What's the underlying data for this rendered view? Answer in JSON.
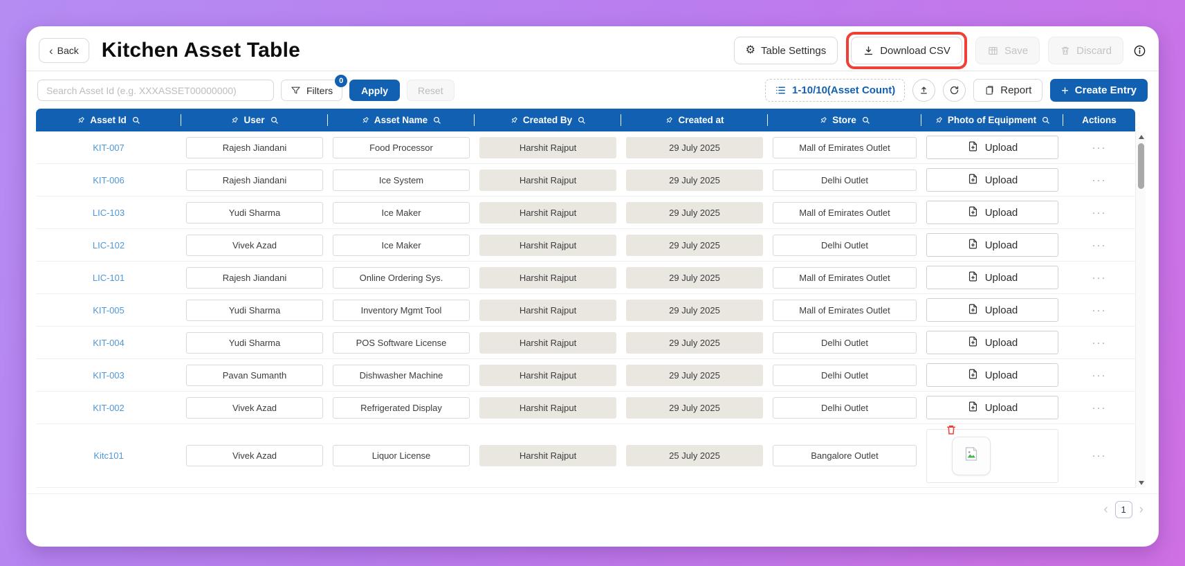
{
  "page": {
    "title": "Kitchen Asset Table",
    "back_label": "Back"
  },
  "title_actions": {
    "table_settings": "Table Settings",
    "download_csv": "Download CSV",
    "save": "Save",
    "discard": "Discard"
  },
  "toolbar": {
    "search_placeholder": "Search Asset Id (e.g. XXXASSET00000000)",
    "filters_label": "Filters",
    "filters_badge": "0",
    "apply_label": "Apply",
    "reset_label": "Reset",
    "asset_count": "1-10/10(Asset Count)",
    "report_label": "Report",
    "create_entry_label": "Create Entry"
  },
  "icons": {
    "back_chevron": "‹",
    "gear-icon": "⚙",
    "plus-icon": "+",
    "ellipsis-icon": "···",
    "prev-chevron": "‹",
    "next-chevron": "›"
  },
  "table": {
    "columns": [
      {
        "label": "Asset Id",
        "pin": true,
        "search": true
      },
      {
        "label": "User",
        "pin": true,
        "search": true
      },
      {
        "label": "Asset Name",
        "pin": true,
        "search": true
      },
      {
        "label": "Created By",
        "pin": true,
        "search": true
      },
      {
        "label": "Created at",
        "pin": true,
        "search": false
      },
      {
        "label": "Store",
        "pin": true,
        "search": true
      },
      {
        "label": "Photo of Equipment",
        "pin": true,
        "search": true
      },
      {
        "label": "Actions",
        "pin": false,
        "search": false
      }
    ],
    "upload_label": "Upload",
    "rows": [
      {
        "asset_id": "KIT-007",
        "user": "Rajesh Jiandani",
        "asset_name": "Food Processor",
        "created_by": "Harshit Rajput",
        "created_at": "29 July 2025",
        "store": "Mall of Emirates Outlet",
        "photo": "upload"
      },
      {
        "asset_id": "KIT-006",
        "user": "Rajesh Jiandani",
        "asset_name": "Ice System",
        "created_by": "Harshit Rajput",
        "created_at": "29 July 2025",
        "store": "Delhi Outlet",
        "photo": "upload"
      },
      {
        "asset_id": "LIC-103",
        "user": "Yudi Sharma",
        "asset_name": "Ice Maker",
        "created_by": "Harshit Rajput",
        "created_at": "29 July 2025",
        "store": "Mall of Emirates Outlet",
        "photo": "upload"
      },
      {
        "asset_id": "LIC-102",
        "user": "Vivek Azad",
        "asset_name": "Ice Maker",
        "created_by": "Harshit Rajput",
        "created_at": "29 July 2025",
        "store": "Delhi Outlet",
        "photo": "upload"
      },
      {
        "asset_id": "LIC-101",
        "user": "Rajesh Jiandani",
        "asset_name": "Online Ordering Sys.",
        "created_by": "Harshit Rajput",
        "created_at": "29 July 2025",
        "store": "Mall of Emirates Outlet",
        "photo": "upload"
      },
      {
        "asset_id": "KIT-005",
        "user": "Yudi Sharma",
        "asset_name": "Inventory Mgmt Tool",
        "created_by": "Harshit Rajput",
        "created_at": "29 July 2025",
        "store": "Mall of Emirates Outlet",
        "photo": "upload"
      },
      {
        "asset_id": "KIT-004",
        "user": "Yudi Sharma",
        "asset_name": "POS Software License",
        "created_by": "Harshit Rajput",
        "created_at": "29 July 2025",
        "store": "Delhi Outlet",
        "photo": "upload"
      },
      {
        "asset_id": "KIT-003",
        "user": "Pavan Sumanth",
        "asset_name": "Dishwasher Machine",
        "created_by": "Harshit Rajput",
        "created_at": "29 July 2025",
        "store": "Delhi Outlet",
        "photo": "upload"
      },
      {
        "asset_id": "KIT-002",
        "user": "Vivek Azad",
        "asset_name": "Refrigerated Display",
        "created_by": "Harshit Rajput",
        "created_at": "29 July 2025",
        "store": "Delhi Outlet",
        "photo": "upload"
      },
      {
        "asset_id": "Kitc101",
        "user": "Vivek Azad",
        "asset_name": "Liquor License",
        "created_by": "Harshit Rajput",
        "created_at": "25 July 2025",
        "store": "Bangalore Outlet",
        "photo": "image"
      }
    ]
  },
  "pagination": {
    "current_page": "1"
  },
  "colors": {
    "accent_blue": "#1160b2",
    "link_blue": "#4f97d6",
    "highlight_red": "#ee4036",
    "beige_cell": "#e9e7df"
  }
}
